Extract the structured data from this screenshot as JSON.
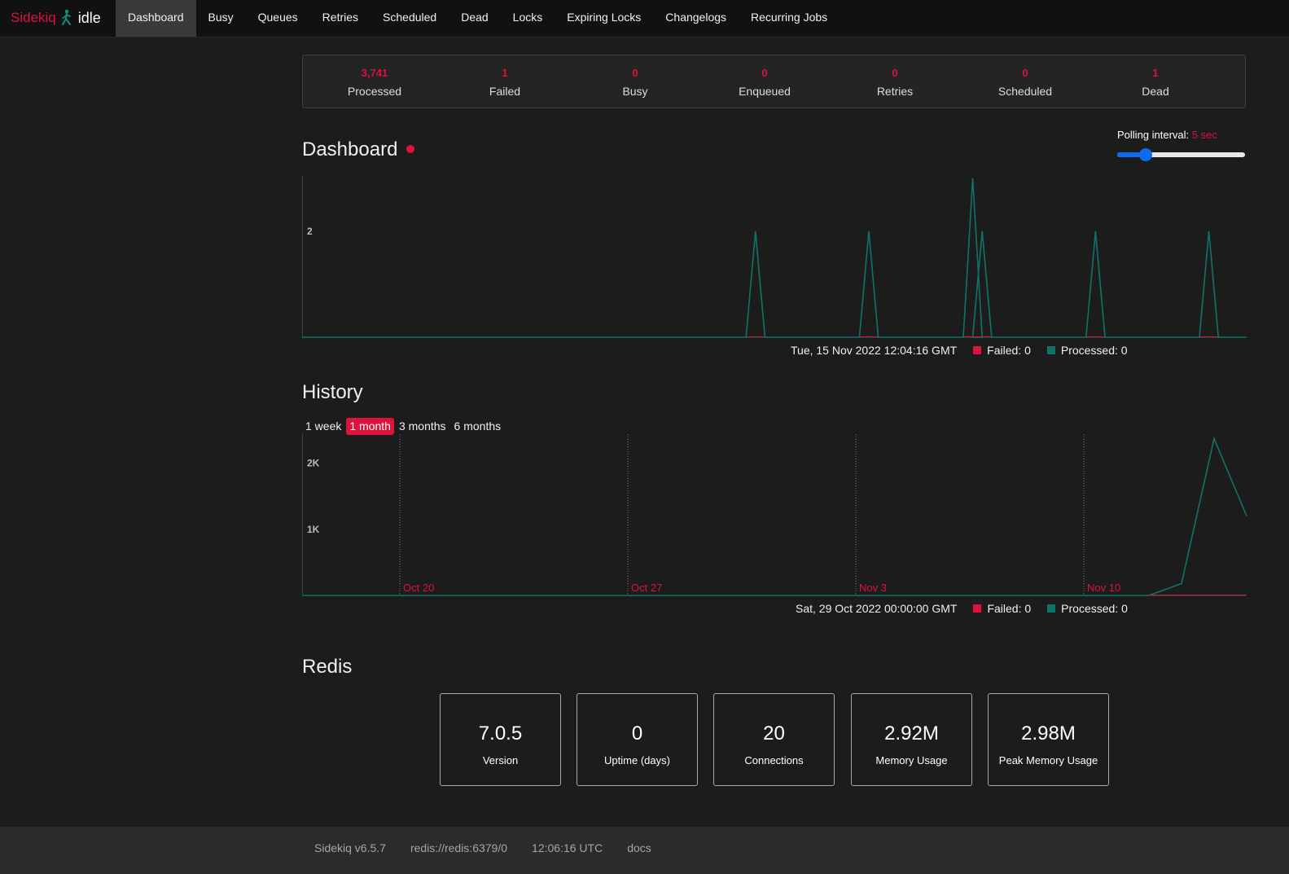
{
  "navbar": {
    "brand": "Sidekiq",
    "status": "idle",
    "items": [
      {
        "label": "Dashboard",
        "active": true
      },
      {
        "label": "Busy"
      },
      {
        "label": "Queues"
      },
      {
        "label": "Retries"
      },
      {
        "label": "Scheduled"
      },
      {
        "label": "Dead"
      },
      {
        "label": "Locks"
      },
      {
        "label": "Expiring Locks"
      },
      {
        "label": "Changelogs"
      },
      {
        "label": "Recurring Jobs"
      }
    ]
  },
  "summary": [
    {
      "count": "3,741",
      "label": "Processed"
    },
    {
      "count": "1",
      "label": "Failed"
    },
    {
      "count": "0",
      "label": "Busy"
    },
    {
      "count": "0",
      "label": "Enqueued"
    },
    {
      "count": "0",
      "label": "Retries"
    },
    {
      "count": "0",
      "label": "Scheduled"
    },
    {
      "count": "1",
      "label": "Dead"
    }
  ],
  "dashboard": {
    "title": "Dashboard",
    "polling_label": "Polling interval:",
    "polling_value": "5 sec",
    "polling_fraction": 0.22
  },
  "history": {
    "title": "History",
    "ranges": [
      {
        "label": "1 week"
      },
      {
        "label": "1 month",
        "active": true
      },
      {
        "label": "3 months"
      },
      {
        "label": "6 months"
      }
    ]
  },
  "chart_data": [
    {
      "type": "line",
      "ylim": [
        0,
        3
      ],
      "y_ticks": [
        "2"
      ],
      "x_count": 100,
      "series": [
        {
          "name": "Failed",
          "color": "#dc143c",
          "values": []
        },
        {
          "name": "Processed",
          "color": "#0f7369",
          "peaks": [
            {
              "i": 48,
              "v": 2
            },
            {
              "i": 60,
              "v": 2
            },
            {
              "i": 71,
              "v": 3
            },
            {
              "i": 72,
              "v": 2
            },
            {
              "i": 84,
              "v": 2
            },
            {
              "i": 96,
              "v": 2
            }
          ]
        }
      ],
      "hover": {
        "timestamp": "Tue, 15 Nov 2022 12:04:16 GMT",
        "failed": "Failed: 0",
        "processed": "Processed: 0"
      }
    },
    {
      "type": "line",
      "ylim": [
        0,
        2400
      ],
      "y_ticks": [
        "2K",
        "1K"
      ],
      "x_ticks": [
        "Oct 20",
        "Oct 27",
        "Nov 3",
        "Nov 10"
      ],
      "series": [
        {
          "name": "Failed",
          "color": "#dc143c",
          "values": [
            0,
            0,
            0,
            0,
            0,
            0,
            0,
            0,
            0,
            0,
            0,
            0,
            0,
            0,
            0,
            0,
            0,
            0,
            0,
            0,
            0,
            0,
            0,
            0,
            0,
            0,
            0,
            0,
            0,
            0
          ]
        },
        {
          "name": "Processed",
          "color": "#0f7369",
          "values": [
            0,
            0,
            0,
            0,
            0,
            0,
            0,
            0,
            0,
            0,
            0,
            0,
            0,
            0,
            0,
            0,
            0,
            0,
            0,
            0,
            0,
            0,
            0,
            0,
            0,
            0,
            0,
            180,
            2370,
            1200
          ]
        }
      ],
      "hover": {
        "timestamp": "Sat, 29 Oct 2022 00:00:00 GMT",
        "failed": "Failed: 0",
        "processed": "Processed: 0"
      }
    }
  ],
  "redis": {
    "title": "Redis",
    "stats": [
      {
        "value": "7.0.5",
        "label": "Version"
      },
      {
        "value": "0",
        "label": "Uptime (days)"
      },
      {
        "value": "20",
        "label": "Connections"
      },
      {
        "value": "2.92M",
        "label": "Memory Usage"
      },
      {
        "value": "2.98M",
        "label": "Peak Memory Usage"
      }
    ]
  },
  "footer": {
    "version": "Sidekiq v6.5.7",
    "redis_url": "redis://redis:6379/0",
    "time": "12:06:16 UTC",
    "docs": "docs"
  },
  "colors": {
    "accent": "#dc143c",
    "processed": "#0f7369",
    "slider": "#0a6cf0"
  }
}
